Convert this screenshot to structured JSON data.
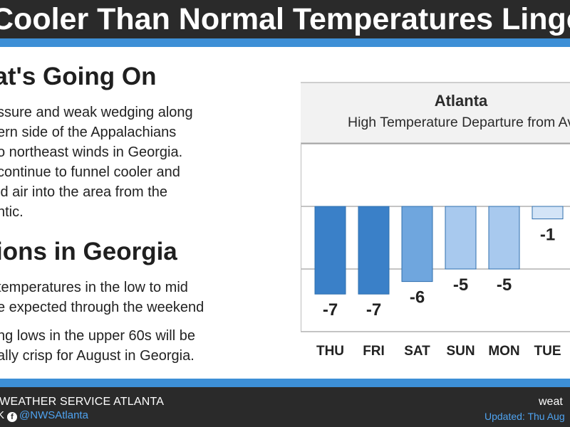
{
  "header": {
    "title": "Cooler Than Normal Temperatures Linger"
  },
  "left": {
    "section1_title": "What's Going On",
    "section1_lines": [
      "ssure and weak wedging along",
      "ern side of the Appalachians",
      "o northeast winds in Georgia.",
      "continue to funnel cooler and",
      "id air into the area from the",
      "ntic."
    ],
    "section2_title": "ions in Georgia",
    "bullet1_lines": [
      "temperatures in the low to mid",
      "e expected through the weekend"
    ],
    "bullet2_lines": [
      "ng lows in the upper 60s will be",
      "ally crisp for August in Georgia."
    ]
  },
  "footer": {
    "agency": "L WEATHER SERVICE ATLANTA",
    "social_prefix": "K",
    "handle": "@NWSAtlanta",
    "website": "weat",
    "updated": "Updated: Thu Aug"
  },
  "colors": {
    "bar_dark": "#3a80c8",
    "bar_mid": "#6fa6de",
    "bar_light": "#a8c9ee",
    "bar_pale": "#d3e4f7",
    "accent": "#3d8fd6",
    "dark": "#2a2a2a"
  },
  "chart_data": {
    "type": "bar",
    "title": "Atlanta",
    "subtitle": "High Temperature Departure from Av",
    "categories": [
      "THU",
      "FRI",
      "SAT",
      "SUN",
      "MON",
      "TUE"
    ],
    "values": [
      -7,
      -7,
      -6,
      -5,
      -5,
      -1
    ],
    "value_labels": [
      "-7",
      "-7",
      "-6",
      "-5",
      "-5",
      "-1"
    ],
    "ylim": [
      -10,
      10
    ],
    "grid": true,
    "legend": "none"
  }
}
